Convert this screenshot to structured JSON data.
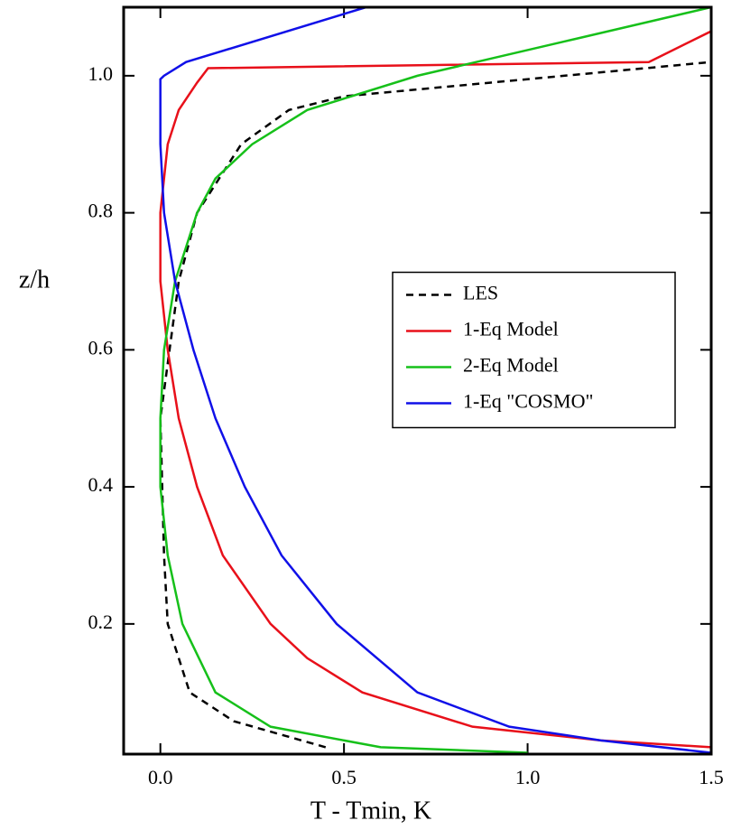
{
  "chart_data": {
    "type": "line",
    "x_label": "T - Tmin, K",
    "y_label": "z/h",
    "xlim": [
      -0.1,
      1.5
    ],
    "ylim": [
      0.01,
      1.1
    ],
    "xticks": [
      {
        "value": 0,
        "label": "0.0"
      },
      0.5,
      {
        "value": 1,
        "label": "1.0"
      },
      1.5
    ],
    "yticks": [
      0.2,
      0.4,
      0.6,
      0.8,
      {
        "value": 1,
        "label": "1.0"
      }
    ],
    "legend": "center right",
    "series": [
      {
        "name": "LES",
        "color": "#000000",
        "dash": true,
        "x": [
          0.45,
          0.2,
          0.08,
          0.02,
          0.01,
          0.0,
          0.05,
          0.1,
          0.22,
          0.35,
          0.5,
          0.9,
          1.3,
          1.5
        ],
        "y": [
          0.02,
          0.058,
          0.1,
          0.2,
          0.3,
          0.5,
          0.7,
          0.8,
          0.9,
          0.95,
          0.97,
          0.99,
          1.01,
          1.02
        ]
      },
      {
        "name": "1-Eq Model",
        "color": "#e8101a",
        "dash": false,
        "x": [
          1.5,
          1.2,
          0.85,
          0.55,
          0.4,
          0.3,
          0.17,
          0.1,
          0.05,
          0.02,
          0.0,
          0.0,
          0.02,
          0.05,
          0.1,
          0.13,
          1.33,
          1.5
        ],
        "y": [
          0.02,
          0.03,
          0.05,
          0.1,
          0.15,
          0.2,
          0.3,
          0.4,
          0.5,
          0.6,
          0.7,
          0.8,
          0.9,
          0.95,
          0.99,
          1.011,
          1.02,
          1.065
        ]
      },
      {
        "name": "2-Eq Model",
        "color": "#16c01a",
        "dash": false,
        "x": [
          1.0,
          0.6,
          0.3,
          0.15,
          0.06,
          0.02,
          0.0,
          0.0,
          0.01,
          0.04,
          0.1,
          0.15,
          0.25,
          0.4,
          0.7,
          1.1,
          1.5
        ],
        "y": [
          0.012,
          0.02,
          0.05,
          0.1,
          0.2,
          0.3,
          0.4,
          0.5,
          0.6,
          0.7,
          0.8,
          0.85,
          0.9,
          0.95,
          1.0,
          1.05,
          1.1
        ]
      },
      {
        "name": "1-Eq \"COSMO\"",
        "color": "#1010e8",
        "dash": false,
        "x": [
          1.5,
          1.2,
          0.95,
          0.7,
          0.48,
          0.33,
          0.23,
          0.15,
          0.09,
          0.04,
          0.01,
          0.0,
          0.0,
          0.01,
          0.07,
          0.56
        ],
        "y": [
          0.012,
          0.03,
          0.05,
          0.1,
          0.2,
          0.3,
          0.4,
          0.5,
          0.6,
          0.7,
          0.8,
          0.9,
          0.995,
          1.0,
          1.02,
          1.1
        ]
      }
    ]
  }
}
